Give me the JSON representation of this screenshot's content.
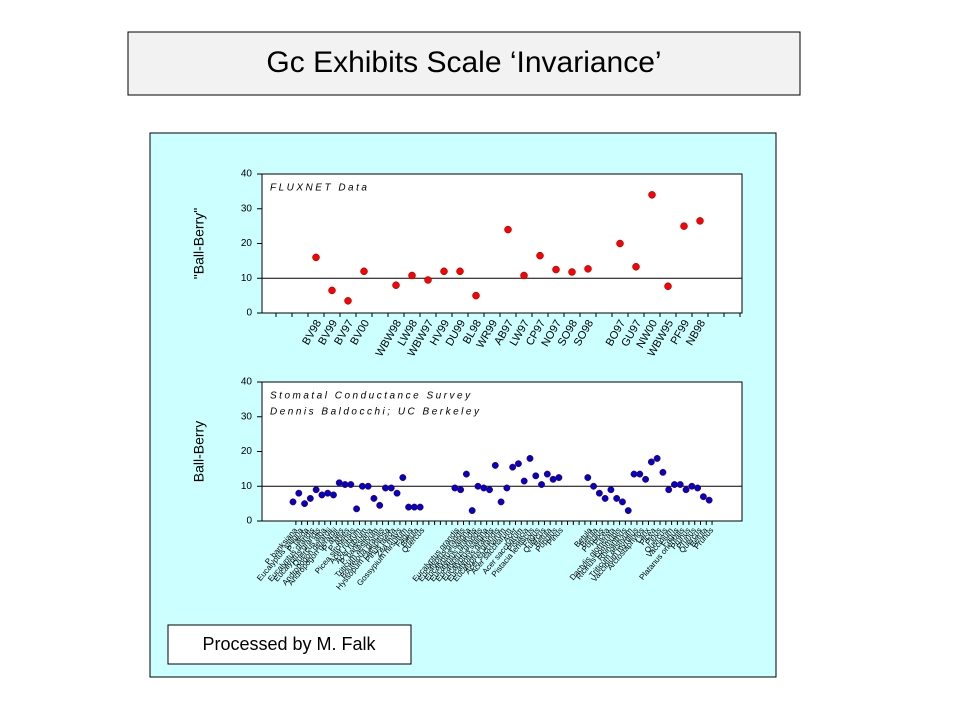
{
  "title": "Gc Exhibits Scale ‘Invariance’",
  "footnote": "Processed by M. Falk",
  "chart_data": [
    {
      "type": "scatter",
      "ylabel": "\"Ball-Berry\"",
      "annotations": [
        "FLUXNET Data"
      ],
      "color": "#ff0000",
      "ylim": [
        0,
        40
      ],
      "yticks": [
        0,
        10,
        20,
        30,
        40
      ],
      "hline": 10,
      "categories": [
        null,
        null,
        null,
        "BV98",
        "BV99",
        "BV97",
        "BV00",
        null,
        "WBW98",
        "LW98",
        "WBW97",
        "HV99",
        "DU99",
        "BL98",
        "WR99",
        "AB97",
        "LW97",
        "CP97",
        "NO97",
        "SO98",
        "SO98",
        null,
        "BO97",
        "GU97",
        "NW00",
        "WBW95",
        "PF99",
        "NB98",
        null,
        null
      ],
      "values": [
        null,
        null,
        null,
        16,
        6.5,
        3.5,
        12,
        null,
        8,
        10.8,
        9.5,
        12,
        12,
        5,
        null,
        24,
        10.8,
        16.5,
        12.5,
        11.8,
        12.7,
        null,
        20,
        13.3,
        34,
        7.7,
        25,
        26.5,
        null,
        null
      ]
    },
    {
      "type": "scatter",
      "ylabel": "Ball-Berry",
      "annotations": [
        "Stomatal Conductance Survey",
        "Dennis Baldocchi; UC Berkeley"
      ],
      "color": "#0000cc",
      "ylim": [
        0,
        40
      ],
      "yticks": [
        0,
        10,
        20,
        30,
        40
      ],
      "hline": 10,
      "categories": [
        "P. banksiana",
        "Eucalyptus saligna",
        "P. taeda",
        "Eucalyptus grandis",
        "Eucalyptus grandis",
        "Quercus alba",
        "Andropogon gerardii",
        "Andropogon gerardii",
        "P. abies",
        "P. abies",
        "Picea sitchensis",
        "Acer rubrum",
        "Acer rubrum",
        "P. banksiana",
        "Triticum aestivum",
        "Bouteloua gracilis",
        "Hyssopum caespitosa",
        "Pinus taeda",
        "Zea mays",
        "Gossypium hirsutum",
        "Fagus",
        "Betula",
        "Quercus",
        null,
        null,
        null,
        null,
        null,
        "Eucalyptus grandis",
        "Eucalyptus grandis",
        "Eucalyptus saligna",
        "Eucalyptus grandis",
        "Eucalyptus grandis",
        "Eucalyptus saligna",
        "Eucalyptus grandis",
        "Eucalyptus grandis",
        "Acer saccharum",
        "Acer saccharum",
        "Acer",
        "Acer saccharum",
        "Pistacia",
        "Pistacia lentiscus",
        "Fagus",
        "Quercus",
        "Betula",
        "Populus",
        "Pinus",
        null,
        null,
        null,
        null,
        "Betula",
        "Betula",
        "Populus",
        "Picea",
        "Dactylis glomerata",
        "Ricinus communis",
        "Rhinanthus",
        "Triticum aestivum",
        "Vaccinium myrtillus",
        "Arctostaphylos",
        "Larix",
        "Picea",
        "Pinus",
        "Quercus",
        "Vaccinium",
        "Fagus",
        "Platanus orientalis",
        "Prunus",
        "Prunus",
        "Quercus",
        "Betula",
        "Prunus"
      ],
      "values": [
        5.5,
        8,
        5,
        6.5,
        9,
        7.5,
        8,
        7.5,
        11,
        10.5,
        10.5,
        3.5,
        10,
        10,
        6.5,
        4.5,
        9.5,
        9.5,
        8,
        12.5,
        4,
        4,
        4,
        null,
        null,
        null,
        null,
        null,
        9.5,
        9,
        13.5,
        3,
        10,
        9.5,
        9,
        16,
        5.5,
        9.5,
        15.5,
        16.5,
        11.5,
        18,
        13,
        10.5,
        13.5,
        12,
        12.5,
        null,
        null,
        null,
        null,
        12.5,
        10,
        8,
        6.5,
        9,
        6.5,
        5.5,
        3,
        13.5,
        13.5,
        12,
        17,
        18,
        14,
        9,
        10.5,
        10.5,
        9,
        10,
        9.5,
        7,
        6
      ]
    }
  ]
}
